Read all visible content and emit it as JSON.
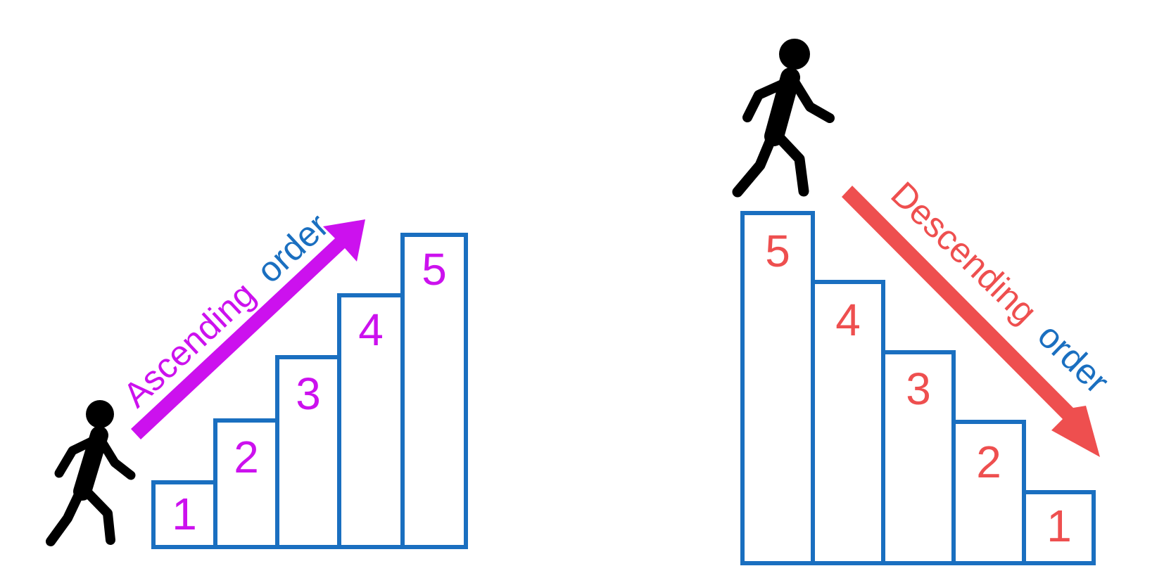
{
  "colors": {
    "stair_outline": "#1a6fc0",
    "ascending_accent": "#cc11ee",
    "descending_accent": "#ee4f4f",
    "order_word": "#1a6fc0",
    "person": "#000000"
  },
  "ascending": {
    "label_word": "Ascending",
    "label_order": "order",
    "steps": [
      "1",
      "2",
      "3",
      "4",
      "5"
    ],
    "icons": [
      "walking-person-icon",
      "up-right-arrow-icon"
    ]
  },
  "descending": {
    "label_word": "Descending",
    "label_order": "order",
    "steps": [
      "5",
      "4",
      "3",
      "2",
      "1"
    ],
    "icons": [
      "walking-person-icon",
      "down-right-arrow-icon"
    ]
  }
}
